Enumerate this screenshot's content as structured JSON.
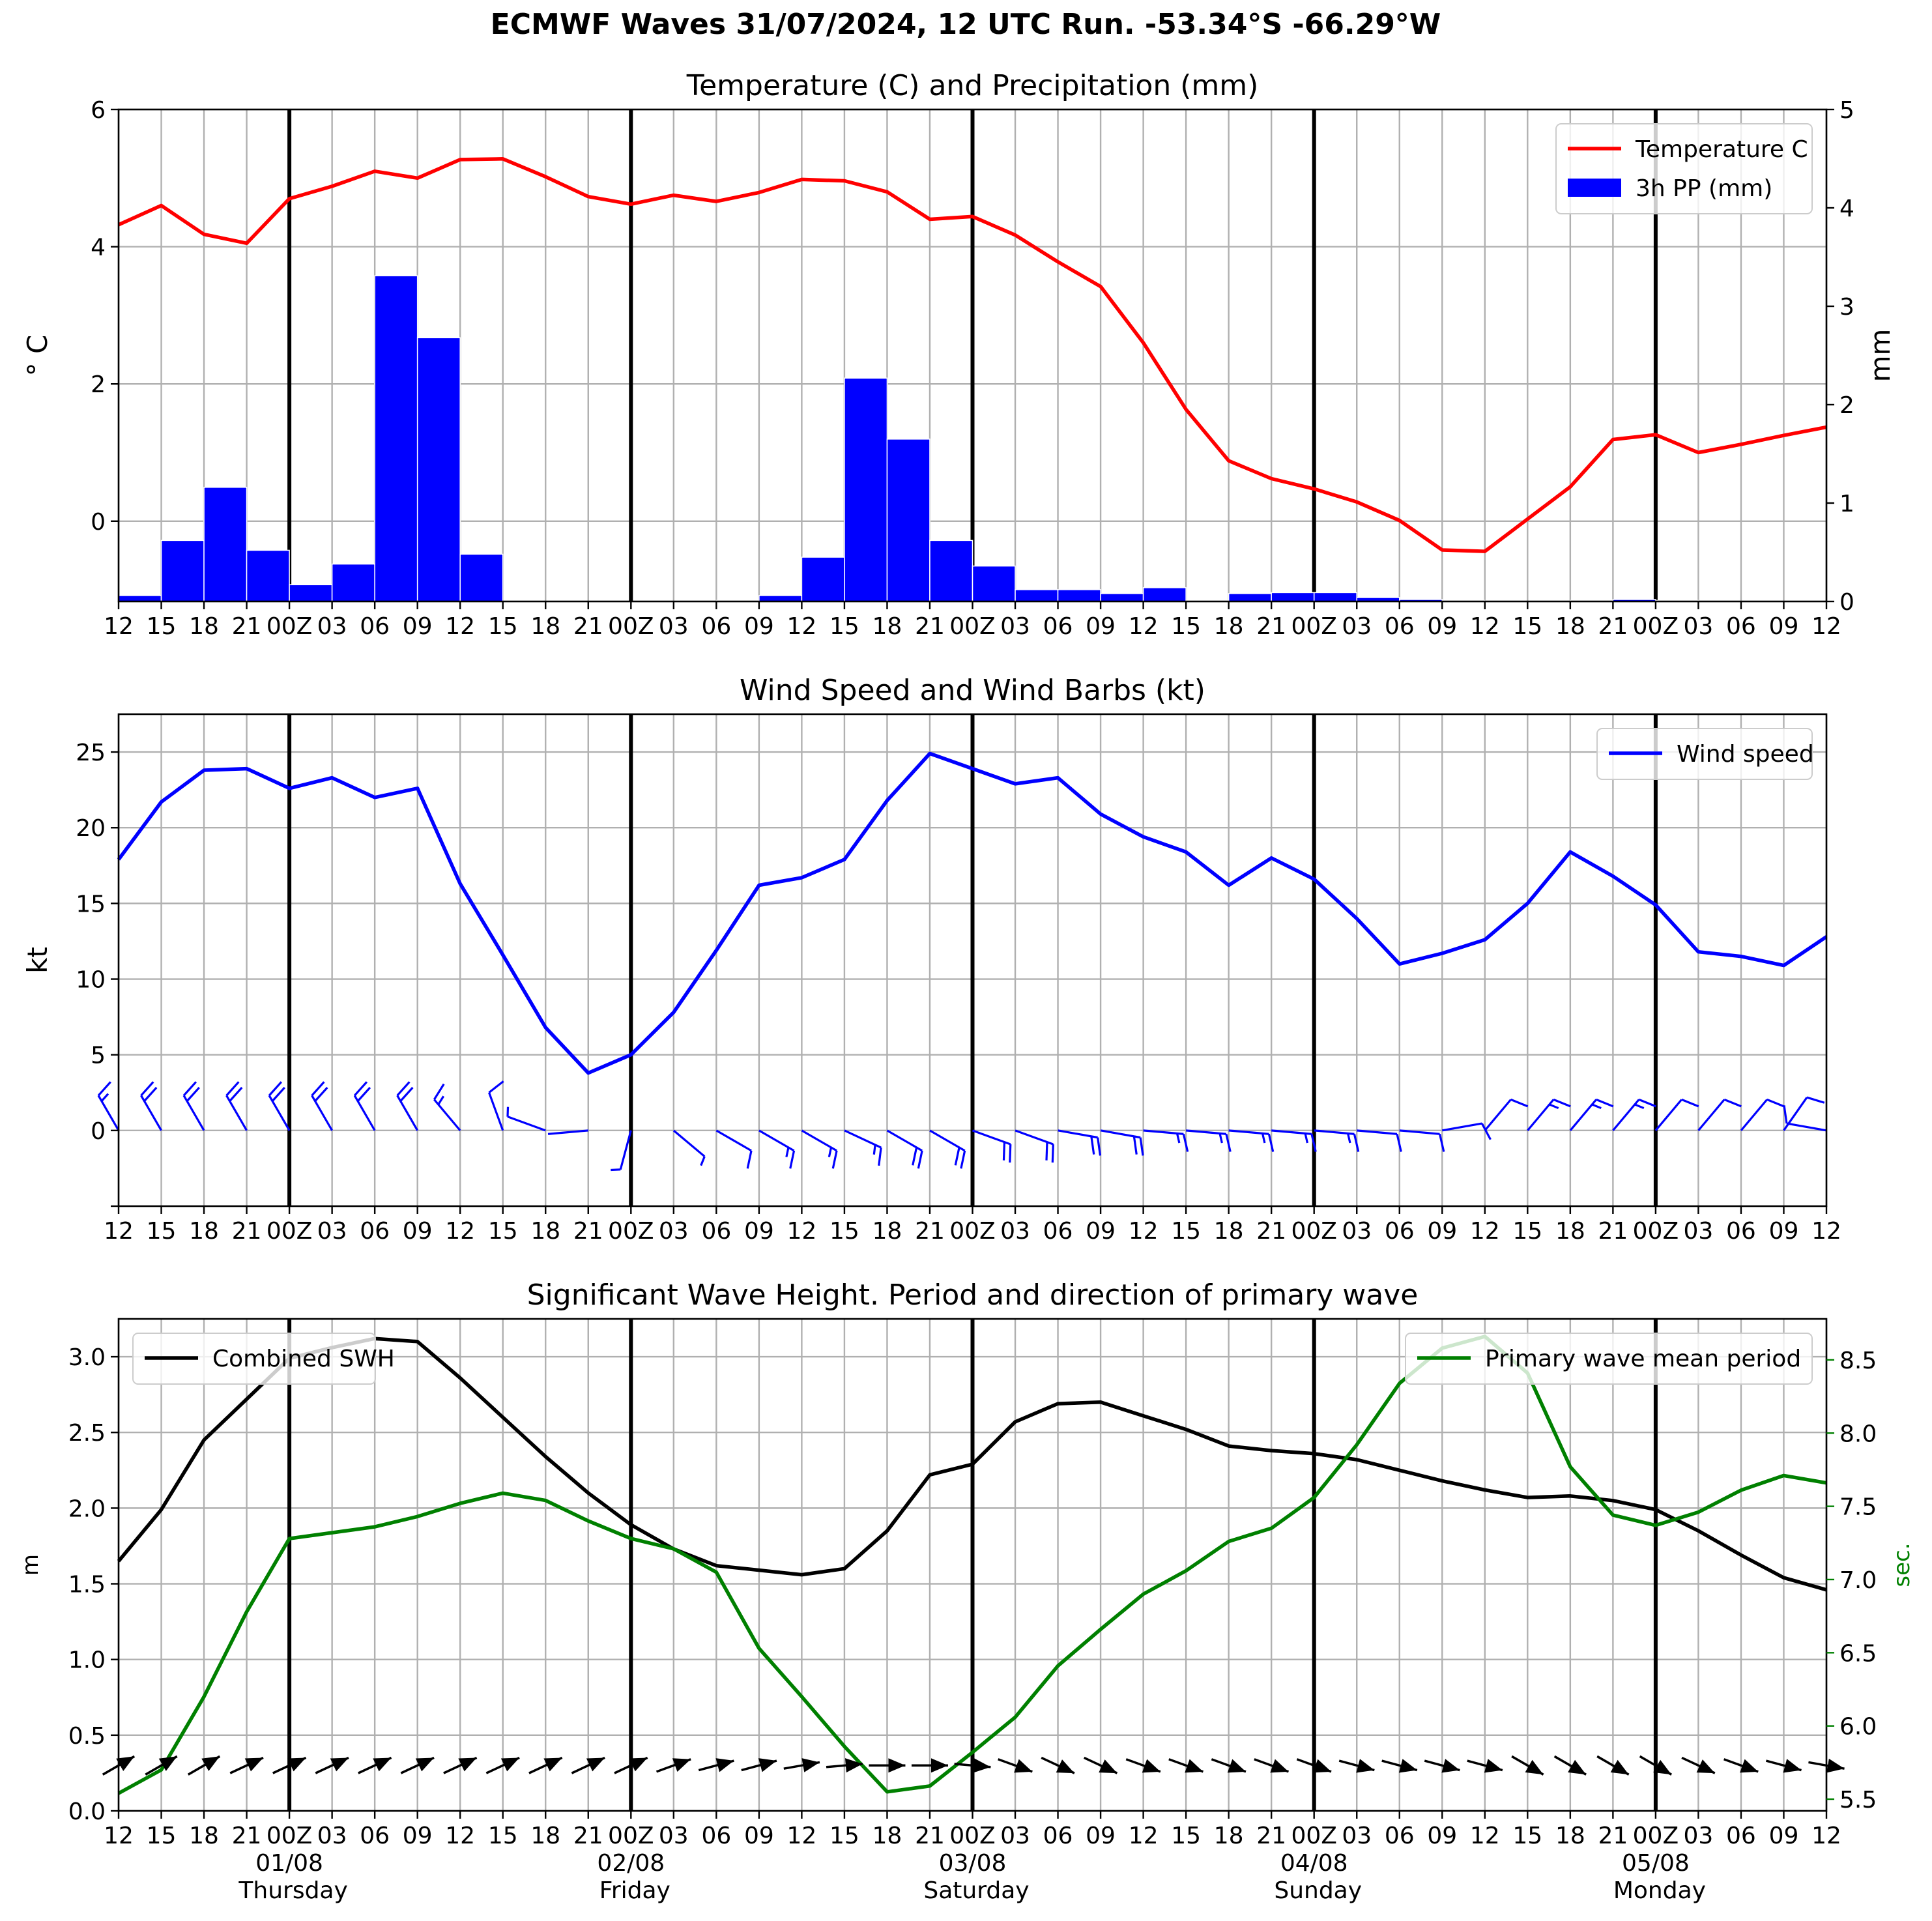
{
  "suptitle": "ECMWF Waves 31/07/2024, 12 UTC Run. -53.34°S -66.29°W",
  "x_tick_labels": [
    "12",
    "15",
    "18",
    "21",
    "00Z",
    "03",
    "06",
    "09",
    "12",
    "15",
    "18",
    "21",
    "00Z",
    "03",
    "06",
    "09",
    "12",
    "15",
    "18",
    "21",
    "00Z",
    "03",
    "06",
    "09",
    "12",
    "15",
    "18",
    "21",
    "00Z",
    "03",
    "06",
    "09",
    "12",
    "15",
    "18",
    "21",
    "00Z",
    "03",
    "06",
    "09",
    "12"
  ],
  "date_labels": [
    {
      "index": 4,
      "date": "01/08",
      "day": "Thursday"
    },
    {
      "index": 12,
      "date": "02/08",
      "day": "Friday"
    },
    {
      "index": 20,
      "date": "03/08",
      "day": "Saturday"
    },
    {
      "index": 28,
      "date": "04/08",
      "day": "Sunday"
    },
    {
      "index": 36,
      "date": "05/08",
      "day": "Monday"
    }
  ],
  "day_boundaries": [
    4,
    12,
    20,
    28,
    36
  ],
  "chart_data": [
    {
      "type": "line",
      "title": "Temperature (C) and Precipitation (mm)",
      "ylabel": "$^\\circ$C",
      "ylabel_display": "° C",
      "ylim": [
        -1.17,
        6
      ],
      "yticks": [
        0,
        2,
        4,
        6
      ],
      "y2label": "mm",
      "y2lim": [
        0,
        5
      ],
      "y2ticks": [
        0,
        1,
        2,
        3,
        4,
        5
      ],
      "grid": true,
      "legend": "top-right",
      "series": [
        {
          "name": "Temperature C",
          "axis": "left",
          "kind": "line",
          "color": "#ff0000",
          "values": [
            4.32,
            4.6,
            4.18,
            4.05,
            4.7,
            4.88,
            5.1,
            5.0,
            5.27,
            5.28,
            5.02,
            4.73,
            4.62,
            4.75,
            4.66,
            4.79,
            4.98,
            4.96,
            4.8,
            4.4,
            4.44,
            4.17,
            3.78,
            3.42,
            2.6,
            1.63,
            0.88,
            0.62,
            0.47,
            0.28,
            0.01,
            -0.42,
            -0.44,
            0.03,
            0.5,
            1.19,
            1.26,
            1.0,
            1.12,
            1.25,
            1.37
          ]
        },
        {
          "name": "3h PP (mm)",
          "axis": "right",
          "kind": "bar",
          "color": "#0000ff",
          "values": [
            0.06,
            0.62,
            1.16,
            0.52,
            0.17,
            0.38,
            3.31,
            2.68,
            0.48,
            0,
            0,
            0,
            0,
            0,
            0.01,
            0.06,
            0.45,
            2.27,
            1.65,
            0.62,
            0.36,
            0.12,
            0.12,
            0.08,
            0.14,
            0.01,
            0.08,
            0.09,
            0.09,
            0.04,
            0.02,
            0.01,
            0,
            0,
            0.01,
            0.02,
            0.01,
            0,
            0,
            0,
            0
          ]
        }
      ]
    },
    {
      "type": "line",
      "title": "Wind Speed and Wind Barbs (kt)",
      "ylabel": "kt",
      "ylim": [
        -5,
        27.5
      ],
      "yticks": [
        0,
        5,
        10,
        15,
        20,
        25
      ],
      "grid": true,
      "legend": "top-right",
      "series": [
        {
          "name": "Wind speed",
          "color": "#0000ff",
          "values": [
            17.9,
            21.7,
            23.8,
            23.9,
            22.6,
            23.3,
            22.0,
            22.6,
            16.3,
            11.6,
            6.8,
            3.8,
            5.0,
            7.8,
            11.9,
            16.2,
            16.7,
            17.9,
            21.8,
            24.9,
            23.9,
            22.9,
            23.3,
            20.9,
            19.4,
            18.4,
            16.2,
            18.0,
            16.6,
            14.0,
            11.0,
            11.7,
            12.6,
            15.0,
            18.4,
            16.8,
            14.9,
            11.8,
            11.5,
            10.9,
            12.8
          ]
        },
        {
          "name": "Wind barbs",
          "kind": "barbs",
          "color": "#0000ff",
          "direction_deg": [
            330,
            330,
            330,
            330,
            330,
            330,
            330,
            330,
            320,
            340,
            290,
            265,
            195,
            130,
            120,
            120,
            120,
            115,
            120,
            120,
            110,
            110,
            100,
            100,
            95,
            95,
            95,
            95,
            95,
            95,
            95,
            80,
            40,
            40,
            40,
            40,
            40,
            40,
            40,
            35,
            280
          ]
        }
      ]
    },
    {
      "type": "line",
      "title": "Significant Wave Height. Period and direction of primary wave",
      "ylabel": "m",
      "ylim": [
        0,
        3.25
      ],
      "yticks": [
        0.0,
        0.5,
        1.0,
        1.5,
        2.0,
        2.5,
        3.0
      ],
      "y2label": "sec.",
      "y2lim": [
        5.42,
        8.78
      ],
      "y2ticks": [
        5.5,
        6.0,
        6.5,
        7.0,
        7.5,
        8.0,
        8.5
      ],
      "grid": true,
      "series": [
        {
          "name": "Combined SWH",
          "axis": "left",
          "color": "#000000",
          "legend": "top-left",
          "values": [
            1.65,
            1.99,
            2.45,
            2.72,
            2.99,
            3.06,
            3.12,
            3.1,
            2.86,
            2.6,
            2.34,
            2.1,
            1.89,
            1.73,
            1.62,
            1.59,
            1.56,
            1.6,
            1.85,
            2.22,
            2.29,
            2.57,
            2.69,
            2.7,
            2.61,
            2.52,
            2.41,
            2.38,
            2.36,
            2.32,
            2.25,
            2.18,
            2.12,
            2.07,
            2.08,
            2.05,
            1.99,
            1.85,
            1.69,
            1.54,
            1.46
          ]
        },
        {
          "name": "Primary wave mean period",
          "axis": "right",
          "color": "#008000",
          "legend": "top-right",
          "values": [
            5.54,
            5.7,
            6.2,
            6.78,
            7.28,
            7.32,
            7.36,
            7.43,
            7.52,
            7.59,
            7.54,
            7.4,
            7.28,
            7.21,
            7.05,
            6.53,
            6.2,
            5.86,
            5.55,
            5.59,
            5.82,
            6.06,
            6.41,
            6.66,
            6.9,
            7.06,
            7.26,
            7.35,
            7.56,
            7.92,
            8.34,
            8.58,
            8.66,
            8.41,
            7.77,
            7.44,
            7.37,
            7.46,
            7.61,
            7.71,
            7.66
          ]
        },
        {
          "name": "Primary wave direction",
          "kind": "arrows",
          "color": "#000000",
          "direction_deg": [
            240,
            240,
            240,
            245,
            245,
            245,
            245,
            245,
            245,
            245,
            245,
            245,
            245,
            250,
            255,
            255,
            260,
            265,
            270,
            270,
            275,
            290,
            295,
            295,
            290,
            290,
            290,
            290,
            290,
            285,
            285,
            285,
            285,
            300,
            300,
            300,
            300,
            295,
            290,
            285,
            280
          ]
        }
      ]
    }
  ]
}
